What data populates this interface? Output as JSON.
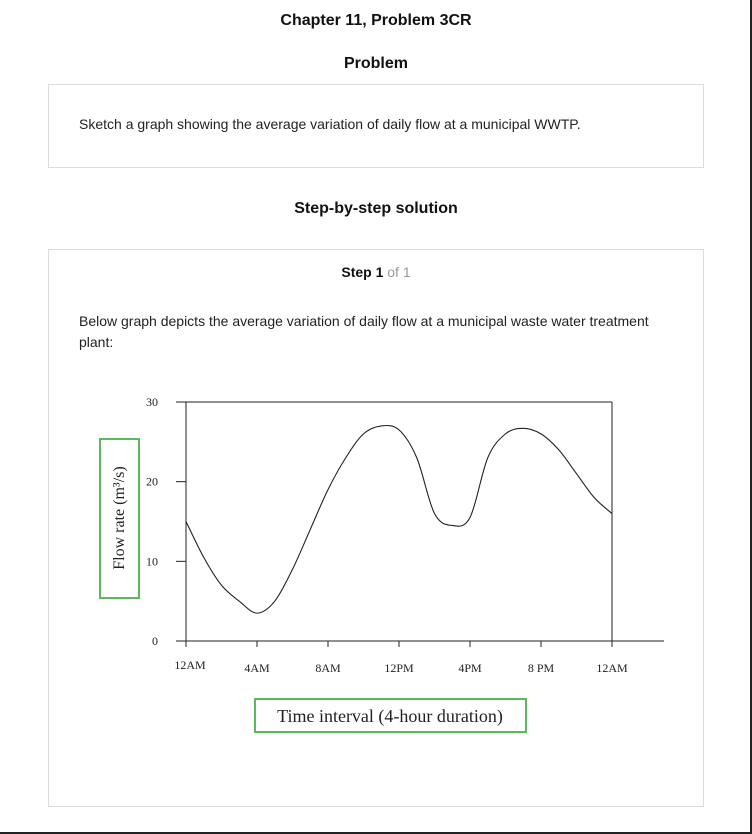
{
  "header": {
    "chapter_title": "Chapter 11, Problem 3CR",
    "problem_heading": "Problem",
    "solution_heading": "Step-by-step solution"
  },
  "problem": {
    "text": "Sketch a graph showing the average variation of daily flow at a municipal WWTP."
  },
  "solution": {
    "step_label": "Step 1",
    "step_of": "of 1",
    "text": "Below graph depicts the average variation of daily flow at a municipal waste water treatment plant:"
  },
  "colors": {
    "label_box_border": "#5cb85c",
    "axis": "#222222",
    "box_border": "#dcdcdc"
  },
  "chart_data": {
    "type": "line",
    "xlabel": "Time interval (4-hour duration)",
    "ylabel": "Flow rate (m³/s)",
    "x_tick_labels": [
      "12AM",
      "4AM",
      "8AM",
      "12PM",
      "4PM",
      "8 PM",
      "12AM"
    ],
    "y_tick_labels": [
      "0",
      "10",
      "20",
      "30"
    ],
    "ylim": [
      0,
      30
    ],
    "xlim_hours": [
      0,
      24
    ],
    "series": [
      {
        "x_hours": [
          0,
          1,
          2,
          3,
          4,
          5,
          6,
          7,
          8,
          9,
          10,
          11,
          12,
          13,
          14,
          15,
          16,
          17,
          18,
          19,
          20,
          21,
          22,
          23,
          24
        ],
        "values": [
          15,
          10.5,
          7,
          5,
          3.5,
          5,
          9,
          14,
          19,
          23,
          26,
          27,
          26.5,
          23,
          16,
          14.5,
          15.5,
          23,
          26,
          26.7,
          26,
          24,
          21,
          18,
          16
        ]
      }
    ],
    "grid": false,
    "frame": true
  }
}
